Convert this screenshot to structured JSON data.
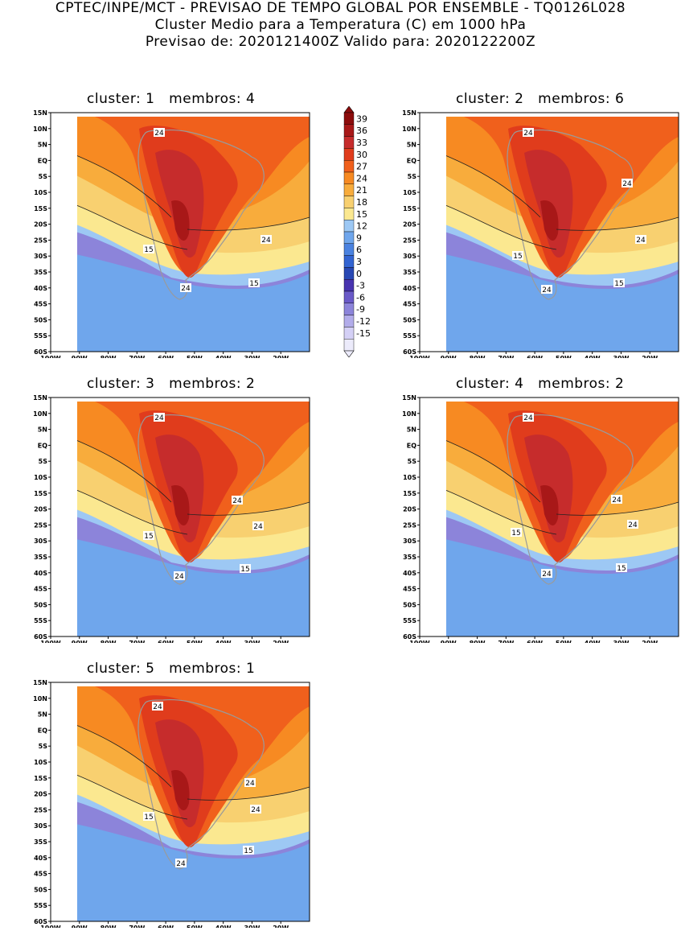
{
  "header": {
    "line1": "CPTEC/INPE/MCT - PREVISAO DE TEMPO GLOBAL POR ENSEMBLE - TQ0126L028",
    "line2": "Cluster Medio para a Temperatura (C) em 1000 hPa",
    "line3": "Previsao de: 2020121400Z   Valido para: 2020122200Z"
  },
  "axes": {
    "lat_labels": [
      "15N",
      "10N",
      "5N",
      "EQ",
      "5S",
      "10S",
      "15S",
      "20S",
      "25S",
      "30S",
      "35S",
      "40S",
      "45S",
      "50S",
      "55S",
      "60S"
    ],
    "lon_labels": [
      "100W",
      "90W",
      "80W",
      "70W",
      "60W",
      "50W",
      "40W",
      "30W",
      "20W"
    ]
  },
  "colorbar": {
    "labels": [
      "39",
      "36",
      "33",
      "30",
      "27",
      "24",
      "21",
      "18",
      "15",
      "12",
      "9",
      "6",
      "3",
      "0",
      "-3",
      "-6",
      "-9",
      "-12",
      "-15"
    ],
    "colors": [
      "#8c0c0c",
      "#a81818",
      "#c62c2c",
      "#e03c1c",
      "#f0601c",
      "#f78a22",
      "#f8ac3c",
      "#f8d070",
      "#fbe890",
      "#9dc8f4",
      "#6fa6ec",
      "#4a82e0",
      "#3264d2",
      "#2848b4",
      "#4834b0",
      "#6a5ac8",
      "#8c84da",
      "#b2acea",
      "#d4d0f6",
      "#ecebfb"
    ]
  },
  "panels": [
    {
      "title": "cluster: 1   membros: 4",
      "labels": [
        "24",
        "15",
        "24",
        "24",
        "15"
      ]
    },
    {
      "title": "cluster: 2   membros: 6",
      "labels": [
        "24",
        "24",
        "15",
        "24",
        "24",
        "15"
      ]
    },
    {
      "title": "cluster: 3   membros: 2",
      "labels": [
        "24",
        "24",
        "15",
        "24",
        "24",
        "15"
      ]
    },
    {
      "title": "cluster: 4   membros: 2",
      "labels": [
        "24",
        "24",
        "15",
        "24",
        "24",
        "15"
      ]
    },
    {
      "title": "cluster: 5   membros: 1",
      "labels": [
        "24",
        "24",
        "15",
        "24",
        "24",
        "15"
      ]
    }
  ]
}
